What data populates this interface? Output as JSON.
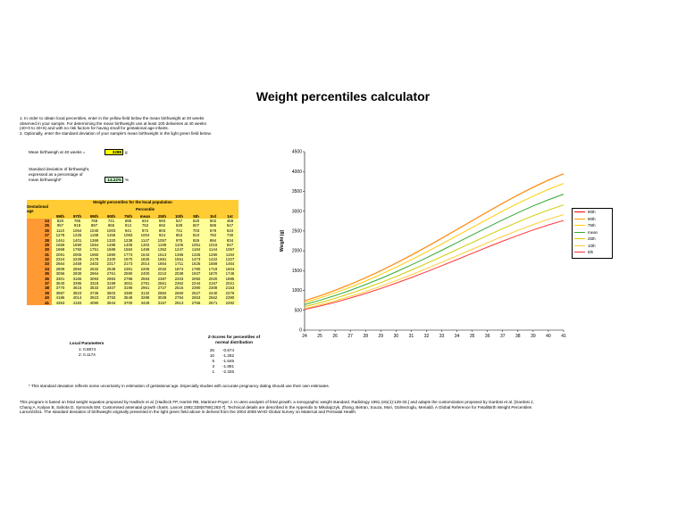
{
  "page": {
    "title": "Weight percentiles calculator",
    "instructions": [
      "1. In order to obtain local percentiles, enter in the yellow field below the mean birthweight at 40 weeks",
      "    observed in your sample. For determining the mean birthweight use at least 100 deliveries at 40 weeks",
      "    (40+0 to 40+6) and with no risk factors for having small for gestational age infants.",
      "2. Optionally, enter the standard deviation of your sample's mean birthweight in the light green field below."
    ],
    "mean_label": "Mean birthweigh at 40 weeks =",
    "mean_value": "3288",
    "mean_unit": "g",
    "sd_label_1": "Standard deviation of birthweight,",
    "sd_label_2": "expressed as a percentage of",
    "sd_label_3": "mean birthweight*",
    "sd_value": "13.22%",
    "sd_unit": "%",
    "table_title": "Weight percentiles for the local population",
    "table_subtitle": "Percentile",
    "ga_header": "Gestational age",
    "percentile_headers": [
      "99th",
      "97th",
      "95th",
      "90th",
      "75th",
      "mean",
      "25th",
      "10th",
      "5th",
      "3rd",
      "1st"
    ],
    "local_params_title": "Local Parameters",
    "local_params": [
      "1: 0.8874",
      "2: 0.1174"
    ],
    "zscore_title_1": "Z-Scores for percentiles of",
    "zscore_title_2": "normal distribution",
    "zscores": [
      [
        "25",
        "-0.674"
      ],
      [
        "10",
        "-1.282"
      ],
      [
        "5",
        "-1.645"
      ],
      [
        "3",
        "-1.881"
      ],
      [
        "1",
        "-2.326"
      ]
    ],
    "footnote": "* This standard deviation reflects some uncertainty in estimation of gestational age. Especially studies with accurate pregnancy dating should use their own estimates.",
    "footer_lines": [
      "This program is based on fetal weight equation proposed by Hadlock et al. [Hadlock FP, Harrist RB, Martinez-Poyer J. In utero analysis of fetal growth: a sonographic weight standard. Radiology 1991;181(1):129-33.] and adapts the customization proposed by Gardosi et al. [Gardosi J,",
      "Chang A, Kalyan B, Sahota D, Symonds EM. Customised antenatal growth charts. Lancet 1992;339(8788):283-7]. Technical details are described in the Appendix to Mikolajczyk, Zhang, Betran, Souza, Mori, Gülmezoglu, Merialdi. A Global Reference for Fetal/Birth Weight Percentiles",
      "Lancet/2011. The standard deviation of birthweight originally presented in the light green field above is derived from the 2004-2008 WHO Global Survey on Maternal and Perinatal Health."
    ]
  },
  "colors": {
    "p99": "#ff0000",
    "p90": "#ff9900",
    "p75": "#ffcc00",
    "mean": "#33aa33",
    "p25": "#cccc00",
    "p10": "#ffcc33",
    "p5": "#ff3333"
  },
  "chart_data": {
    "type": "table",
    "title": "Weight percentiles for the local population",
    "columns": [
      "Gestational age",
      "99th",
      "97th",
      "95th",
      "90th",
      "75th",
      "mean",
      "25th",
      "10th",
      "5th",
      "3rd",
      "1st"
    ],
    "rows": [
      [
        "24",
        "820",
        "786",
        "768",
        "741",
        "695",
        "644",
        "593",
        "547",
        "520",
        "502",
        "468"
      ],
      [
        "25",
        "957",
        "918",
        "897",
        "865",
        "812",
        "752",
        "692",
        "638",
        "607",
        "586",
        "547"
      ],
      [
        "26",
        "1110",
        "1064",
        "1040",
        "1003",
        "941",
        "872",
        "803",
        "741",
        "703",
        "679",
        "634"
      ],
      [
        "27",
        "1278",
        "1225",
        "1198",
        "1155",
        "1083",
        "1004",
        "924",
        "853",
        "810",
        "782",
        "730"
      ],
      [
        "28",
        "1461",
        "1401",
        "1369",
        "1320",
        "1238",
        "1147",
        "1057",
        "975",
        "926",
        "894",
        "834"
      ],
      [
        "29",
        "1659",
        "1590",
        "1554",
        "1498",
        "1405",
        "1302",
        "1199",
        "1106",
        "1051",
        "1015",
        "947"
      ],
      [
        "30",
        "1869",
        "1792",
        "1751",
        "1689",
        "1584",
        "1468",
        "1352",
        "1247",
        "1184",
        "1144",
        "1067"
      ],
      [
        "31",
        "2091",
        "2005",
        "1960",
        "1890",
        "1773",
        "1643",
        "1513",
        "1395",
        "1325",
        "1280",
        "1194"
      ],
      [
        "32",
        "2324",
        "2228",
        "2178",
        "2100",
        "1970",
        "1825",
        "1681",
        "1551",
        "1473",
        "1422",
        "1327"
      ],
      [
        "33",
        "2564",
        "2459",
        "2403",
        "2317",
        "2173",
        "2014",
        "1854",
        "1711",
        "1625",
        "1569",
        "1464"
      ],
      [
        "34",
        "2809",
        "2694",
        "2632",
        "2538",
        "2381",
        "2206",
        "2032",
        "1874",
        "1780",
        "1719",
        "1604"
      ],
      [
        "35",
        "3056",
        "2930",
        "2864",
        "2761",
        "2590",
        "2400",
        "2210",
        "2039",
        "1937",
        "1870",
        "1745"
      ],
      [
        "36",
        "3301",
        "3165",
        "3093",
        "2983",
        "2798",
        "2593",
        "2387",
        "2203",
        "2092",
        "2020",
        "1885"
      ],
      [
        "37",
        "3540",
        "3395",
        "3318",
        "3199",
        "3001",
        "2781",
        "2561",
        "2362",
        "2244",
        "2167",
        "2021"
      ],
      [
        "38",
        "3770",
        "3615",
        "3533",
        "3407",
        "3196",
        "2961",
        "2727",
        "2516",
        "2390",
        "2308",
        "2153"
      ],
      [
        "39",
        "3987",
        "3823",
        "3736",
        "3603",
        "3380",
        "3132",
        "2884",
        "2660",
        "2527",
        "2440",
        "2276"
      ],
      [
        "40",
        "4186",
        "4014",
        "3923",
        "3783",
        "3549",
        "3288",
        "3028",
        "2794",
        "2653",
        "2562",
        "2390"
      ],
      [
        "41",
        "4363",
        "4183",
        "4090",
        "3944",
        "3700",
        "3428",
        "3157",
        "2913",
        "2766",
        "2671",
        "2492"
      ]
    ],
    "line_chart": {
      "type": "line",
      "xlabel": "Gestational Age (weeks)",
      "ylabel": "Weight (g)",
      "xlim": [
        24,
        41
      ],
      "ylim": [
        0,
        4500
      ],
      "xticks": [
        "24",
        "25",
        "26",
        "27",
        "28",
        "29",
        "30",
        "31",
        "32",
        "33",
        "34",
        "35",
        "36",
        "37",
        "38",
        "39",
        "40",
        "41"
      ],
      "yticks": [
        "0",
        "500",
        "1000",
        "1500",
        "2000",
        "2500",
        "3000",
        "3500",
        "4000",
        "4500"
      ],
      "grid": false,
      "legend": "right",
      "x": [
        24,
        25,
        26,
        27,
        28,
        29,
        30,
        31,
        32,
        33,
        34,
        35,
        36,
        37,
        38,
        39,
        40,
        41
      ],
      "series": [
        {
          "name": "90th",
          "color": "#ff0000",
          "values": [
            741,
            865,
            1003,
            1155,
            1320,
            1498,
            1689,
            1890,
            2100,
            2317,
            2538,
            2761,
            2983,
            3199,
            3407,
            3603,
            3783,
            3944
          ]
        },
        {
          "name": "90th",
          "color": "#ff9900",
          "values": [
            741,
            865,
            1003,
            1155,
            1320,
            1498,
            1689,
            1890,
            2100,
            2317,
            2538,
            2761,
            2983,
            3199,
            3407,
            3603,
            3783,
            3944
          ]
        },
        {
          "name": "75th",
          "color": "#ffcc00",
          "values": [
            695,
            812,
            941,
            1083,
            1238,
            1405,
            1584,
            1773,
            1970,
            2173,
            2381,
            2590,
            2798,
            3001,
            3196,
            3380,
            3549,
            3700
          ]
        },
        {
          "name": "mean",
          "color": "#33aa33",
          "values": [
            644,
            752,
            872,
            1004,
            1147,
            1302,
            1468,
            1643,
            1825,
            2014,
            2206,
            2400,
            2593,
            2781,
            2961,
            3132,
            3288,
            3428
          ]
        },
        {
          "name": "25th",
          "color": "#cccc00",
          "values": [
            593,
            692,
            803,
            924,
            1057,
            1199,
            1352,
            1513,
            1681,
            1854,
            2032,
            2210,
            2387,
            2561,
            2727,
            2884,
            3028,
            3157
          ]
        },
        {
          "name": "10th",
          "color": "#ffcc33",
          "values": [
            547,
            638,
            741,
            853,
            975,
            1106,
            1247,
            1395,
            1551,
            1711,
            1874,
            2039,
            2203,
            2362,
            2516,
            2660,
            2794,
            2913
          ]
        },
        {
          "name": "5th",
          "color": "#ff3333",
          "values": [
            520,
            607,
            703,
            810,
            926,
            1051,
            1184,
            1325,
            1473,
            1625,
            1780,
            1937,
            2092,
            2244,
            2390,
            2527,
            2653,
            2766
          ]
        }
      ]
    }
  }
}
